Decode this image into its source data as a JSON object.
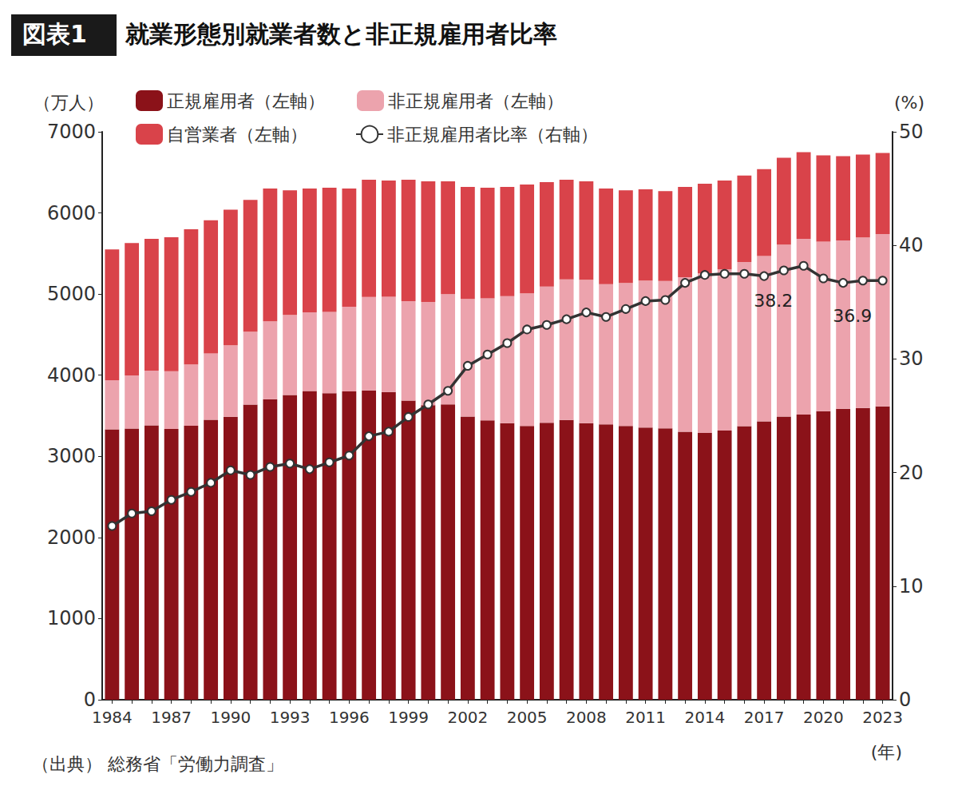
{
  "chart_data": {
    "type": "bar",
    "figure_label": "図表1",
    "title": "就業形態別就業者数と非正規雇用者比率",
    "y_label": "（万人）",
    "y2_label": "(%)",
    "x_label": "(年)",
    "source": "（出典） 総務省「労働力調査」",
    "stacked": true,
    "grid": false,
    "legend": "top-left",
    "categories": [
      "1984",
      null,
      null,
      "1987",
      null,
      null,
      "1990",
      null,
      null,
      "1993",
      null,
      null,
      "1996",
      null,
      null,
      "1999",
      null,
      null,
      "2002",
      null,
      null,
      "2005",
      null,
      null,
      "2008",
      null,
      null,
      "2011",
      null,
      null,
      "2014",
      null,
      null,
      "2017",
      null,
      null,
      "2020",
      null,
      null,
      "2023"
    ],
    "ylim": [
      0,
      7000
    ],
    "yticks": [
      0,
      1000,
      2000,
      3000,
      4000,
      5000,
      6000,
      7000
    ],
    "y2lim": [
      0,
      50
    ],
    "y2ticks": [
      0,
      10,
      20,
      30,
      40,
      50
    ],
    "series": [
      {
        "name": "正規雇用者（左軸）",
        "type": "bar",
        "color": "#8b1219",
        "values": [
          3333,
          3343,
          3383,
          3337,
          3377,
          3452,
          3488,
          3639,
          3705,
          3756,
          3805,
          3779,
          3800,
          3812,
          3794,
          3688,
          3630,
          3640,
          3489,
          3444,
          3410,
          3374,
          3415,
          3449,
          3410,
          3395,
          3374,
          3355,
          3345,
          3302,
          3288,
          3317,
          3372,
          3432,
          3490,
          3515,
          3556,
          3587,
          3597,
          3615
        ]
      },
      {
        "name": "非正規雇用者（左軸）",
        "type": "bar",
        "color": "#eca3ad",
        "values": [
          604,
          655,
          674,
          711,
          755,
          817,
          881,
          897,
          958,
          986,
          971,
          1001,
          1043,
          1152,
          1173,
          1225,
          1273,
          1360,
          1451,
          1504,
          1564,
          1634,
          1678,
          1732,
          1765,
          1727,
          1763,
          1812,
          1816,
          1906,
          1967,
          1986,
          2023,
          2036,
          2120,
          2165,
          2090,
          2075,
          2101,
          2124
        ]
      },
      {
        "name": "自営業者（左軸）",
        "type": "bar",
        "color": "#d9434a",
        "values": [
          1613,
          1632,
          1623,
          1652,
          1668,
          1641,
          1671,
          1624,
          1637,
          1538,
          1524,
          1530,
          1457,
          1446,
          1433,
          1497,
          1487,
          1390,
          1380,
          1362,
          1346,
          1342,
          1287,
          1229,
          1215,
          1178,
          1143,
          1123,
          1109,
          1112,
          1105,
          1097,
          1065,
          1072,
          1070,
          1070,
          1064,
          1038,
          1022,
          1001
        ]
      },
      {
        "name": "非正規雇用者比率（右軸）",
        "type": "line",
        "axis": "y2",
        "color": "#333333",
        "marker": "circle",
        "line_style": "solid",
        "values": [
          15.3,
          16.4,
          16.6,
          17.6,
          18.3,
          19.1,
          20.2,
          19.8,
          20.5,
          20.8,
          20.3,
          20.9,
          21.5,
          23.2,
          23.6,
          24.9,
          26.0,
          27.2,
          29.4,
          30.4,
          31.4,
          32.6,
          33.0,
          33.5,
          34.1,
          33.7,
          34.4,
          35.1,
          35.2,
          36.7,
          37.4,
          37.5,
          37.5,
          37.3,
          37.8,
          38.2,
          37.1,
          36.7,
          36.9,
          36.9
        ],
        "value_labels": [
          null,
          null,
          null,
          null,
          null,
          null,
          null,
          null,
          null,
          null,
          null,
          null,
          null,
          null,
          null,
          null,
          null,
          null,
          null,
          null,
          null,
          null,
          null,
          null,
          null,
          null,
          null,
          null,
          null,
          null,
          null,
          null,
          null,
          null,
          null,
          "38.2",
          null,
          null,
          null,
          "36.9"
        ]
      }
    ]
  }
}
